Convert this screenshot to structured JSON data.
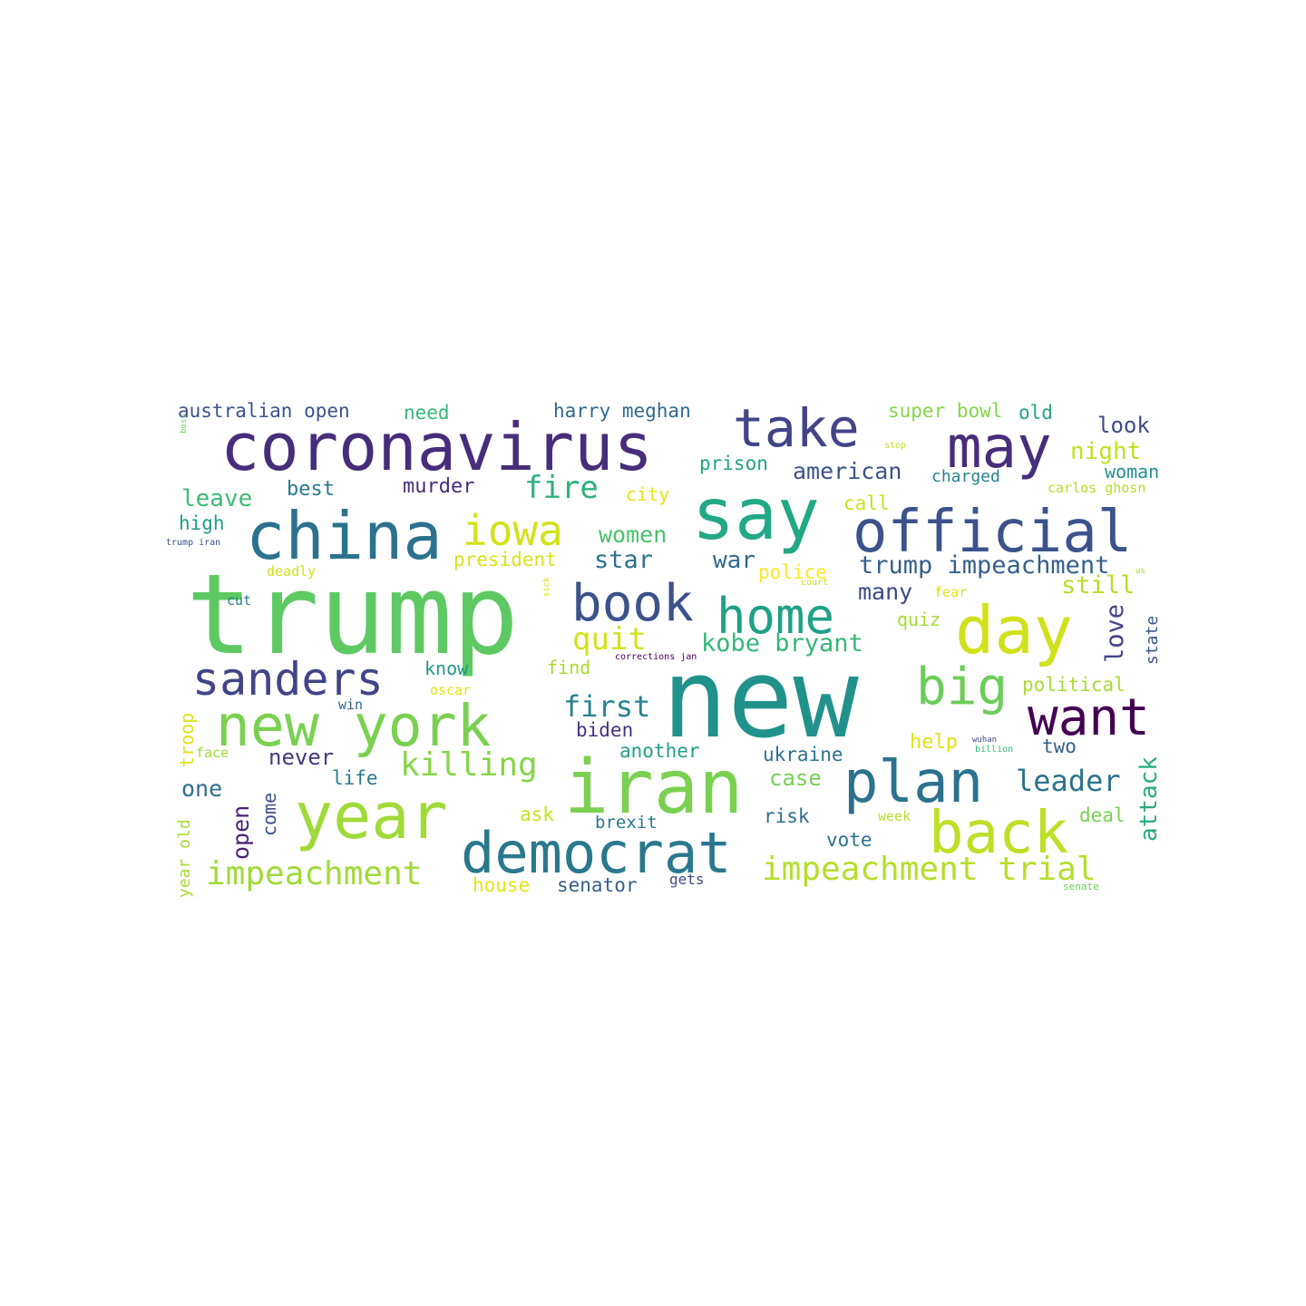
{
  "words": [
    {
      "text": "trump",
      "color": "#5ec962"
    },
    {
      "text": "new",
      "color": "#21918c"
    },
    {
      "text": "coronavirus",
      "color": "#472d7b"
    },
    {
      "text": "iran",
      "color": "#7ad151"
    },
    {
      "text": "say",
      "color": "#22a884"
    },
    {
      "text": "china",
      "color": "#2c728e"
    },
    {
      "text": "official",
      "color": "#3b528b"
    },
    {
      "text": "year",
      "color": "#a0da39"
    },
    {
      "text": "day",
      "color": "#d0e11c"
    },
    {
      "text": "new york",
      "color": "#7ad151"
    },
    {
      "text": "democrat",
      "color": "#2a788e"
    },
    {
      "text": "take",
      "color": "#414487"
    },
    {
      "text": "may",
      "color": "#472d7b"
    },
    {
      "text": "book",
      "color": "#3b528b"
    },
    {
      "text": "home",
      "color": "#1fa187"
    },
    {
      "text": "plan",
      "color": "#2c728e"
    },
    {
      "text": "back",
      "color": "#bddf26"
    },
    {
      "text": "want",
      "color": "#440154"
    },
    {
      "text": "sanders",
      "color": "#414487"
    },
    {
      "text": "iowa",
      "color": "#d2e21b"
    },
    {
      "text": "big",
      "color": "#6ccd5a"
    },
    {
      "text": "impeachment trial",
      "color": "#b5de2b"
    },
    {
      "text": "impeachment",
      "color": "#a0da39"
    },
    {
      "text": "killing",
      "color": "#86d549"
    },
    {
      "text": "fire",
      "color": "#2db27d"
    },
    {
      "text": "first",
      "color": "#26828e"
    },
    {
      "text": "quit",
      "color": "#d2e21b"
    },
    {
      "text": "leader",
      "color": "#2c728e"
    },
    {
      "text": "trump impeachment",
      "color": "#355f8d"
    },
    {
      "text": "kobe bryant",
      "color": "#35b779"
    },
    {
      "text": "american",
      "color": "#3b528b"
    },
    {
      "text": "women",
      "color": "#4ac16d"
    },
    {
      "text": "star",
      "color": "#2c728e"
    },
    {
      "text": "war",
      "color": "#306a8e"
    },
    {
      "text": "many",
      "color": "#3e4989"
    },
    {
      "text": "still",
      "color": "#b5de2b"
    },
    {
      "text": "look",
      "color": "#3e4989"
    },
    {
      "text": "night",
      "color": "#c2df23"
    },
    {
      "text": "attack",
      "color": "#27ad81"
    },
    {
      "text": "love",
      "color": "#414487"
    },
    {
      "text": "leave",
      "color": "#3dbc74"
    },
    {
      "text": "case",
      "color": "#73d056"
    },
    {
      "text": "open",
      "color": "#482475"
    },
    {
      "text": "one",
      "color": "#2e6e8e"
    },
    {
      "text": "never",
      "color": "#443983"
    },
    {
      "text": "australian open",
      "color": "#3b528b"
    },
    {
      "text": "harry meghan",
      "color": "#31688e"
    },
    {
      "text": "super bowl",
      "color": "#86d549"
    },
    {
      "text": "old",
      "color": "#20a486"
    },
    {
      "text": "need",
      "color": "#35b779"
    },
    {
      "text": "murder",
      "color": "#472d7b"
    },
    {
      "text": "best",
      "color": "#2a788e"
    },
    {
      "text": "prison",
      "color": "#20a386"
    },
    {
      "text": "charged",
      "color": "#25848e"
    },
    {
      "text": "woman",
      "color": "#21918c"
    },
    {
      "text": "high",
      "color": "#1f9e89"
    },
    {
      "text": "city",
      "color": "#e5e419"
    },
    {
      "text": "call",
      "color": "#c8e020"
    },
    {
      "text": "carlos ghosn",
      "color": "#b5de2b"
    },
    {
      "text": "president",
      "color": "#d8e219"
    },
    {
      "text": "police",
      "color": "#fde725"
    },
    {
      "text": "deadly",
      "color": "#d0e11c"
    },
    {
      "text": "quiz",
      "color": "#a8db34"
    },
    {
      "text": "fear",
      "color": "#dae319"
    },
    {
      "text": "know",
      "color": "#1f988b"
    },
    {
      "text": "find",
      "color": "#a8db34"
    },
    {
      "text": "political",
      "color": "#a8db34"
    },
    {
      "text": "state",
      "color": "#39568c"
    },
    {
      "text": "biden",
      "color": "#46327e"
    },
    {
      "text": "another",
      "color": "#1f9f88"
    },
    {
      "text": "ukraine",
      "color": "#2c728e"
    },
    {
      "text": "help",
      "color": "#dde318"
    },
    {
      "text": "two",
      "color": "#355f8d"
    },
    {
      "text": "life",
      "color": "#2a788e"
    },
    {
      "text": "come",
      "color": "#3b528b"
    },
    {
      "text": "ask",
      "color": "#c8e020"
    },
    {
      "text": "brexit",
      "color": "#2a788e"
    },
    {
      "text": "risk",
      "color": "#2e6e8e"
    },
    {
      "text": "week",
      "color": "#b5de2b"
    },
    {
      "text": "deal",
      "color": "#7ad151"
    },
    {
      "text": "vote",
      "color": "#2c728e"
    },
    {
      "text": "house",
      "color": "#e5e419"
    },
    {
      "text": "senator",
      "color": "#355f8d"
    },
    {
      "text": "gets",
      "color": "#3e4989"
    },
    {
      "text": "senate",
      "color": "#6ccd5a"
    },
    {
      "text": "troop",
      "color": "#dde318"
    },
    {
      "text": "year old",
      "color": "#a8db34"
    },
    {
      "text": "face",
      "color": "#a0da39"
    },
    {
      "text": "win",
      "color": "#31688e"
    },
    {
      "text": "oscar",
      "color": "#e5e419"
    },
    {
      "text": "cut",
      "color": "#2a788e"
    },
    {
      "text": "court",
      "color": "#c8e020"
    },
    {
      "text": "stop",
      "color": "#c8e020"
    },
    {
      "text": "corrections jan",
      "color": "#440154"
    },
    {
      "text": "trump iran",
      "color": "#3b528b"
    },
    {
      "text": "billion",
      "color": "#35b779"
    },
    {
      "text": "sick",
      "color": "#dde318"
    },
    {
      "text": "boss",
      "color": "#6ccd5a"
    },
    {
      "text": "wuhan",
      "color": "#3e4989"
    },
    {
      "text": "us",
      "color": "#a0da39"
    }
  ]
}
